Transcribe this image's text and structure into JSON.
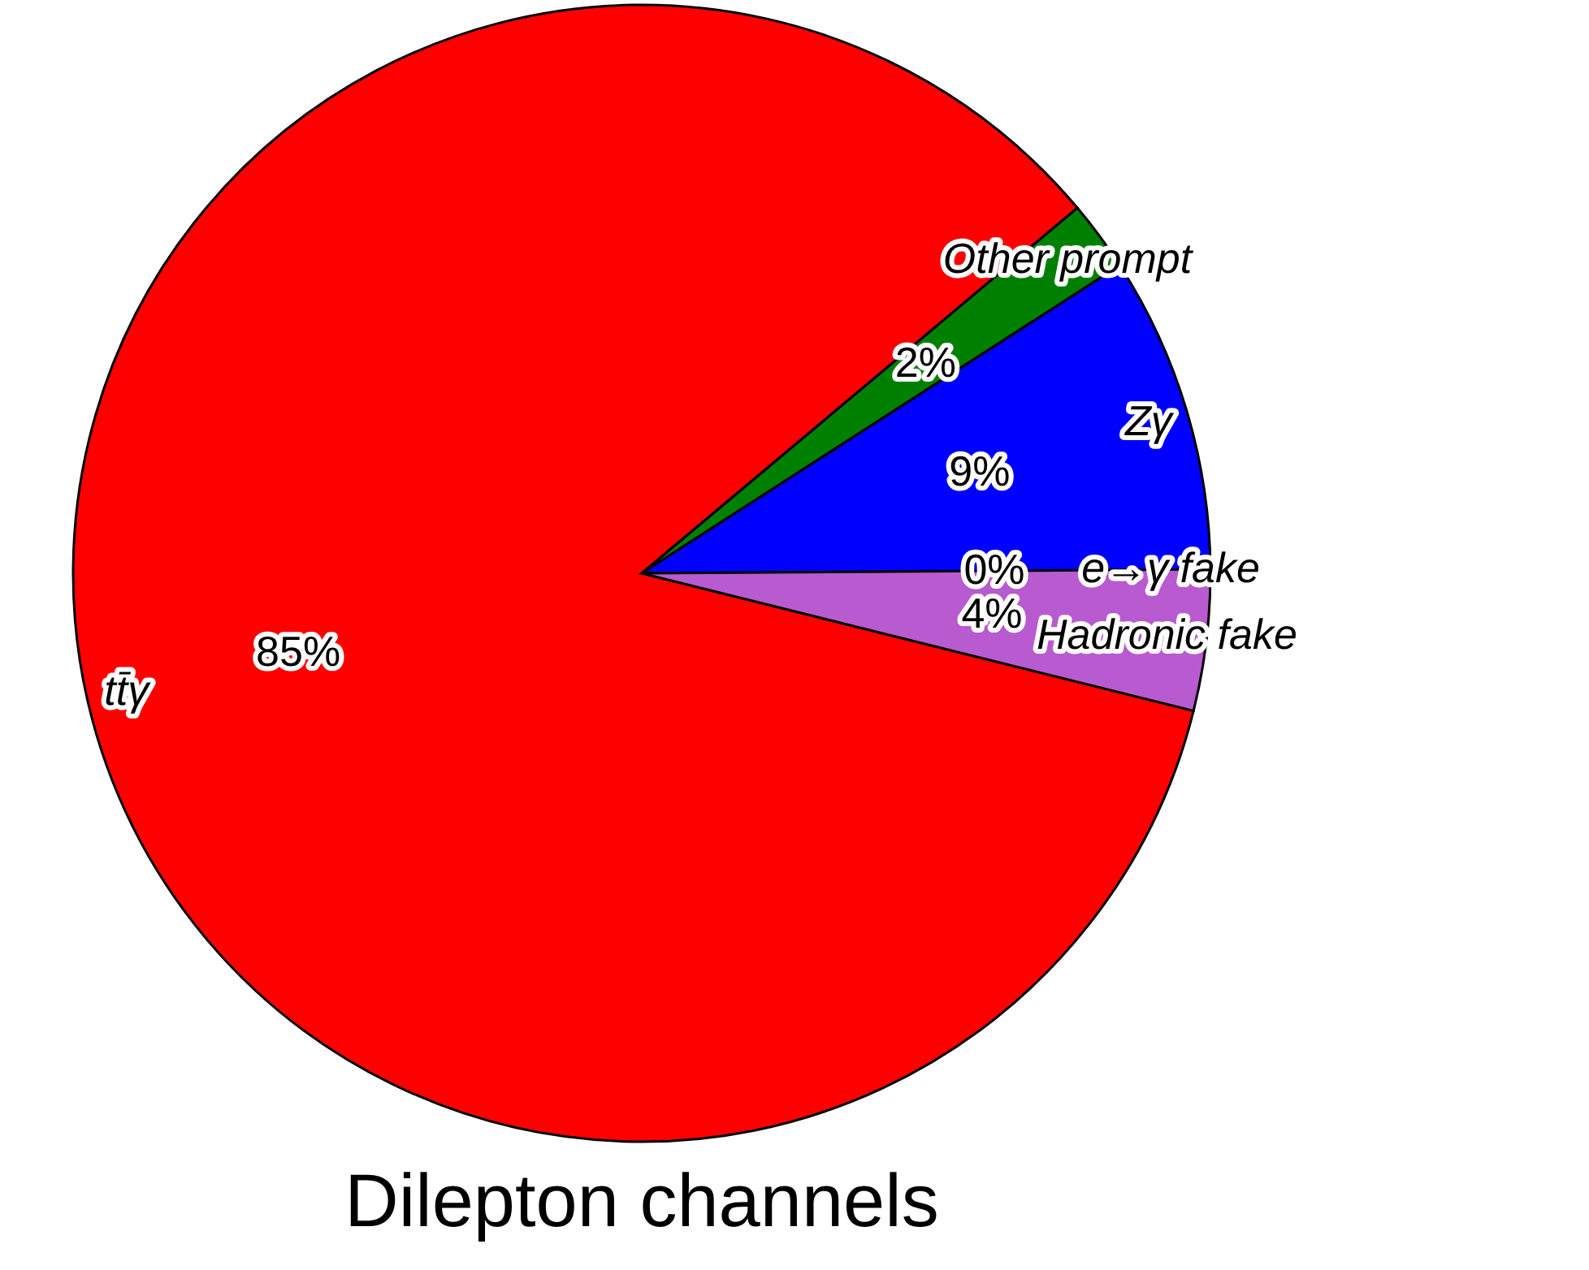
{
  "chart_data": {
    "type": "pie",
    "title": "Dilepton channels",
    "categories": [
      "tt̄γ",
      "Other prompt",
      "Zγ",
      "e→γ fake",
      "Hadronic fake"
    ],
    "values": [
      85,
      2,
      9,
      0,
      4
    ],
    "value_labels": [
      "85%",
      "2%",
      "9%",
      "0%",
      "4%"
    ],
    "colors": [
      "#ff0000",
      "#008000",
      "#0000ff",
      "#400040",
      "#b85ad0"
    ],
    "legend": false
  }
}
